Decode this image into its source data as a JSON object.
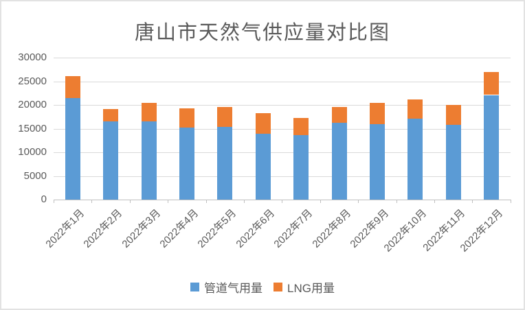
{
  "chart_data": {
    "type": "bar",
    "stacked": true,
    "title": "唐山市天然气供应量对比图",
    "categories": [
      "2022年1月",
      "2022年2月",
      "2022年3月",
      "2022年4月",
      "2022年5月",
      "2022年6月",
      "2022年7月",
      "2022年8月",
      "2022年9月",
      "2022年10月",
      "2022年11月",
      "2022年12月"
    ],
    "series": [
      {
        "name": "管道气用量",
        "color": "#5B9BD5",
        "values": [
          21400,
          16500,
          16500,
          15200,
          15400,
          13900,
          13600,
          16300,
          16000,
          17100,
          15800,
          22100
        ]
      },
      {
        "name": "LNG用量",
        "color": "#ED7D31",
        "values": [
          4700,
          2700,
          4000,
          4100,
          4200,
          4300,
          3700,
          3200,
          4500,
          4000,
          4200,
          4800
        ]
      }
    ],
    "totals": [
      26100,
      19200,
      20500,
      19300,
      19600,
      18200,
      17300,
      19500,
      20500,
      21100,
      20000,
      26900
    ],
    "y_ticks": [
      0,
      5000,
      10000,
      15000,
      20000,
      25000,
      30000
    ],
    "ylim": [
      0,
      30000
    ],
    "xlabel": "",
    "ylabel": "",
    "grid": true,
    "legend_position": "bottom"
  },
  "colors": {
    "bar_blue": "#5B9BD5",
    "bar_orange": "#ED7D31",
    "gridline": "#d9d9d9",
    "axis": "#bfbfbf",
    "text": "#595959",
    "border": "#e2e2e2"
  }
}
